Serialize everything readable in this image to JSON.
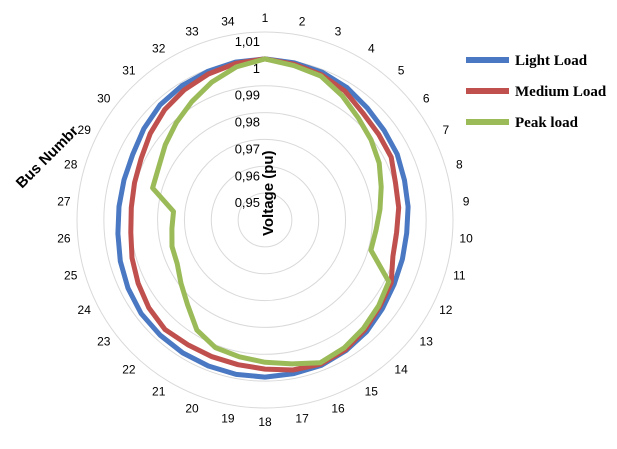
{
  "chart_data": {
    "type": "radar",
    "title": "",
    "value_axis_label": "Voltage (pu)",
    "category_axis_label": "Bus Numbr",
    "rlim": [
      0.94,
      1.01
    ],
    "ring_ticks": [
      0.95,
      0.96,
      0.97,
      0.98,
      0.99,
      1,
      1.01
    ],
    "ring_tick_labels": [
      "0,95",
      "0,96",
      "0,97",
      "0,98",
      "0,99",
      "1",
      "1,01"
    ],
    "categories": [
      "1",
      "2",
      "3",
      "4",
      "5",
      "6",
      "7",
      "8",
      "9",
      "10",
      "11",
      "12",
      "13",
      "14",
      "15",
      "16",
      "17",
      "18",
      "19",
      "20",
      "21",
      "22",
      "23",
      "24",
      "25",
      "26",
      "27",
      "28",
      "29",
      "30",
      "31",
      "32",
      "33",
      "34"
    ],
    "legend_position": "right",
    "series": [
      {
        "name": "Light Load",
        "color": "#4a78c2",
        "values": [
          1.0,
          0.9995,
          0.999,
          0.998,
          0.9965,
          0.9955,
          0.995,
          0.994,
          0.9935,
          0.993,
          0.9932,
          0.9937,
          0.9948,
          0.9962,
          0.9972,
          0.998,
          0.9982,
          0.9985,
          0.9985,
          0.9983,
          0.9982,
          0.998,
          0.9978,
          0.997,
          0.996,
          0.995,
          0.9946,
          0.9946,
          0.995,
          0.9965,
          0.998,
          0.9988,
          0.9993,
          0.9998
        ]
      },
      {
        "name": "Medium Load",
        "color": "#c0504d",
        "values": [
          1.0,
          0.999,
          0.998,
          0.9965,
          0.994,
          0.993,
          0.9925,
          0.9905,
          0.99,
          0.9892,
          0.9895,
          0.9925,
          0.9935,
          0.9952,
          0.9968,
          0.9975,
          0.9968,
          0.9955,
          0.9948,
          0.9946,
          0.9946,
          0.9952,
          0.9942,
          0.9928,
          0.9915,
          0.9902,
          0.99,
          0.9905,
          0.9915,
          0.9935,
          0.9955,
          0.997,
          0.9983,
          0.9993
        ]
      },
      {
        "name": "Peak load",
        "color": "#9bbb59",
        "values": [
          1.0,
          0.9985,
          0.9975,
          0.9945,
          0.9915,
          0.9895,
          0.9875,
          0.985,
          0.983,
          0.9815,
          0.981,
          0.9915,
          0.993,
          0.9945,
          0.996,
          0.997,
          0.9945,
          0.993,
          0.9918,
          0.991,
          0.9882,
          0.9828,
          0.9792,
          0.9765,
          0.976,
          0.9748,
          0.9742,
          0.9835,
          0.9842,
          0.9865,
          0.989,
          0.9918,
          0.995,
          0.998
        ]
      }
    ]
  }
}
